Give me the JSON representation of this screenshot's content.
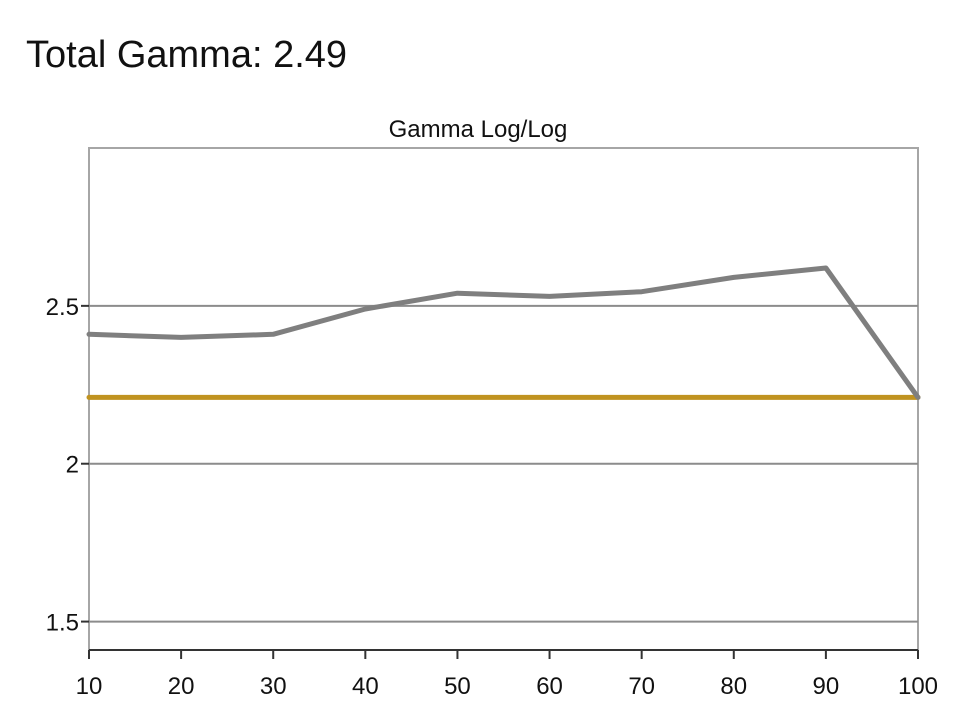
{
  "page": {
    "heading_label": "Total Gamma:",
    "heading_value": "2.49"
  },
  "chart_data": {
    "type": "line",
    "title": "Gamma Log/Log",
    "xlabel": "",
    "ylabel": "",
    "xlim": [
      10,
      100
    ],
    "ylim": [
      1.41,
      3.0
    ],
    "x_ticks": [
      10,
      20,
      30,
      40,
      50,
      60,
      70,
      80,
      90,
      100
    ],
    "x_tick_labels": [
      "10",
      "20",
      "30",
      "40",
      "50",
      "60",
      "70",
      "80",
      "90",
      "100"
    ],
    "y_ticks": [
      1.5,
      2,
      2.5
    ],
    "y_tick_labels": [
      "1.5",
      "2",
      "2.5"
    ],
    "grid": "horizontal",
    "legend": "none",
    "series": [
      {
        "color": "#7f7f7f",
        "x": [
          10,
          20,
          30,
          40,
          50,
          60,
          70,
          80,
          90,
          100
        ],
        "values": [
          2.41,
          2.4,
          2.41,
          2.49,
          2.54,
          2.53,
          2.545,
          2.59,
          2.62,
          2.21
        ]
      },
      {
        "color": "#c09320",
        "x": [
          10,
          100
        ],
        "values": [
          2.21,
          2.21
        ]
      }
    ],
    "colors": {
      "frame": "#a6a6a6",
      "gridline": "#8c8c8c"
    }
  }
}
